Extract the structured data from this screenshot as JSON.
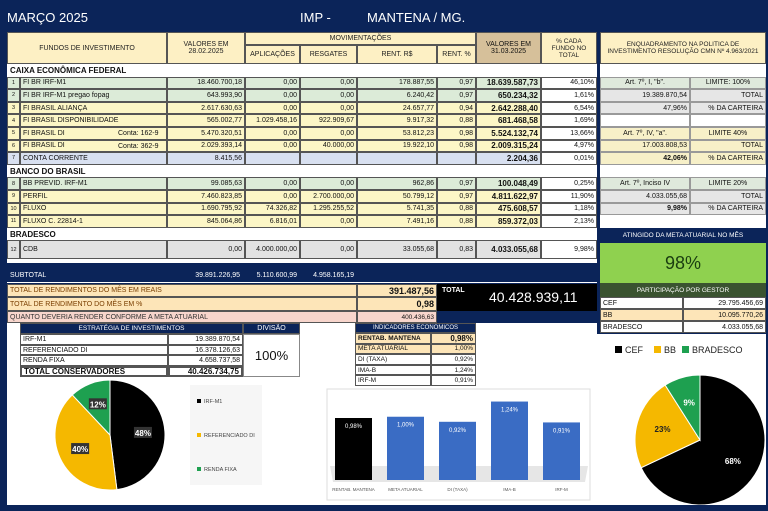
{
  "header": {
    "month": "MARÇO 2025",
    "org": "IMP -",
    "city": "MANTENA / MG."
  },
  "columns": {
    "funds": "FUNDOS DE INVESTIMENTO",
    "v0": "VALORES EM 28.02.2025",
    "mov": "MOVIMENTAÇÕES",
    "aplic": "APLICAÇÕES",
    "resg": "RESGATES",
    "rent_rs": "RENT. R$",
    "rent_pct": "RENT. %",
    "v1": "VALORES EM 31.03.2025",
    "pct": "% CADA FUNDO NO TOTAL",
    "enq": "ENQUADRAMENTO NA POLITICA DE INVESTIMENTO RESOLUÇÃO CMN Nº 4.963/2021"
  },
  "sections": [
    {
      "name": "CAIXA ECONÔMICA FEDERAL",
      "rows": [
        {
          "n": "1",
          "name": "FI BR IRF-M1",
          "conta": "",
          "v0": "18.460.700,18",
          "aplic": "0,00",
          "resg": "0,00",
          "rent_rs": "178.887,55",
          "rent_pct": "0,97",
          "v1": "18.639.587,73",
          "pct": "46,10%",
          "color": "g"
        },
        {
          "n": "2",
          "name": "FI BR IRF-M1 pregao fopag",
          "conta": "",
          "v0": "643.993,90",
          "aplic": "0,00",
          "resg": "0,00",
          "rent_rs": "6.240,42",
          "rent_pct": "0,97",
          "v1": "650.234,32",
          "pct": "1,61%",
          "color": "g"
        },
        {
          "n": "3",
          "name": "FI BRASIL ALIANÇA",
          "conta": "",
          "v0": "2.617.630,63",
          "aplic": "0,00",
          "resg": "0,00",
          "rent_rs": "24.657,77",
          "rent_pct": "0,94",
          "v1": "2.642.288,40",
          "pct": "6,54%",
          "color": "y"
        },
        {
          "n": "4",
          "name": "FI BRASIL DISPONIBILIDADE",
          "conta": "",
          "v0": "565.002,77",
          "aplic": "1.029.458,16",
          "resg": "922.909,67",
          "rent_rs": "9.917,32",
          "rent_pct": "0,88",
          "v1": "681.468,58",
          "pct": "1,69%",
          "color": "y"
        },
        {
          "n": "5",
          "name": "FI BRASIL DI",
          "conta": "Conta: 162-9",
          "v0": "5.470.320,51",
          "aplic": "0,00",
          "resg": "0,00",
          "rent_rs": "53.812,23",
          "rent_pct": "0,98",
          "v1": "5.524.132,74",
          "pct": "13,66%",
          "color": "y"
        },
        {
          "n": "6",
          "name": "FI BRASIL DI",
          "conta": "Conta: 362-9",
          "v0": "2.029.393,14",
          "aplic": "0,00",
          "resg": "40.000,00",
          "rent_rs": "19.922,10",
          "rent_pct": "0,98",
          "v1": "2.009.315,24",
          "pct": "4,97%",
          "color": "y"
        },
        {
          "n": "7",
          "name": "CONTA CORRENTE",
          "conta": "",
          "v0": "8.415,56",
          "aplic": "",
          "resg": "",
          "rent_rs": "",
          "rent_pct": "",
          "v1": "2.204,36",
          "pct": "0,01%",
          "color": "bl"
        }
      ]
    },
    {
      "name": "BANCO DO BRASIL",
      "rows": [
        {
          "n": "8",
          "name": "BB PREVID. IRF-M1",
          "conta": "",
          "v0": "99.085,63",
          "aplic": "0,00",
          "resg": "0,00",
          "rent_rs": "962,86",
          "rent_pct": "0,97",
          "v1": "100.048,49",
          "pct": "0,25%",
          "color": "g"
        },
        {
          "n": "9",
          "name": "PERFIL",
          "conta": "",
          "v0": "7.460.823,85",
          "aplic": "0,00",
          "resg": "2.700.000,00",
          "rent_rs": "50.799,12",
          "rent_pct": "0,97",
          "v1": "4.811.622,97",
          "pct": "11,90%",
          "color": "y"
        },
        {
          "n": "10",
          "name": "FLUXO",
          "conta": "",
          "v0": "1.690.795,92",
          "aplic": "74.326,82",
          "resg": "1.295.255,52",
          "rent_rs": "5.741,35",
          "rent_pct": "0,88",
          "v1": "475.608,57",
          "pct": "1,18%",
          "color": "y"
        },
        {
          "n": "11",
          "name": "FLUXO  C. 22814-1",
          "conta": "",
          "v0": "845.064,86",
          "aplic": "6.816,01",
          "resg": "0,00",
          "rent_rs": "7.491,16",
          "rent_pct": "0,88",
          "v1": "859.372,03",
          "pct": "2,13%",
          "color": "y"
        }
      ]
    },
    {
      "name": "BRADESCO",
      "rows": [
        {
          "n": "12",
          "name": "CDB",
          "conta": "",
          "v0": "0,00",
          "aplic": "4.000.000,00",
          "resg": "0,00",
          "rent_rs": "33.055,68",
          "rent_pct": "0,83",
          "v1": "4.033.055,68",
          "pct": "9,98%",
          "color": "gr"
        }
      ]
    }
  ],
  "enquadramento": [
    [
      "Art. 7º, I, \"b\".",
      "LIMITE: 100%"
    ],
    [
      "19.389.870,54",
      "TOTAL"
    ],
    [
      "47,96%",
      "% DA CARTEIRA"
    ],
    [
      "",
      ""
    ],
    [
      "Art. 7º, IV, \"a\".",
      "LIMITE 40%"
    ],
    [
      "17.003.808,53",
      "TOTAL"
    ],
    [
      "42,06%",
      "% DA CARTEIRA"
    ],
    [
      "Art. 7º, Inciso IV",
      "LIMITE 20%"
    ],
    [
      "4.033.055,68",
      "TOTAL"
    ],
    [
      "9,98%",
      "% DA CARTEIRA"
    ]
  ],
  "subtotal": {
    "label": "SUBTOTAL",
    "v0": "39.891.226,95",
    "aplic": "5.110.600,99",
    "resg": "4.958.165,19"
  },
  "totals": {
    "reais_label": "TOTAL DE RENDIMENTOS DO MÊS EM REAIS",
    "reais": "391.487,56",
    "pct_label": "TOTAL DE RENDIMENTO DO MÊS EM %",
    "pct": "0,98",
    "meta_label": "QUANTO DEVERIA RENDER CONFORME A META ATUARIAL",
    "meta": "400.436,63",
    "total_label": "TOTAL",
    "total": "40.428.939,11"
  },
  "meta_atingida": {
    "label": "ATINGIDO DA META ATUARIAL NO MÊS",
    "value": "98%",
    "fraction": 0.98
  },
  "participacao": {
    "title": "PARTICIPAÇÃO POR GESTOR",
    "rows": [
      [
        "CEF",
        "29.795.456,69"
      ],
      [
        "BB",
        "10.095.770,26"
      ],
      [
        "BRADESCO",
        "4.033.055,68"
      ]
    ]
  },
  "estrategia": {
    "title": "ESTRATÉGIA DE INVESTIMENTOS",
    "divisao": "DIVISÃO",
    "divisao_value": "100%",
    "rows": [
      [
        "IRF-M1",
        "19.389.870,54"
      ],
      [
        "REFERENCIADO DI",
        "16.378.126,63"
      ],
      [
        "RENDA FIXA",
        "4.658.737,58"
      ]
    ],
    "total": [
      "TOTAL CONSERVADORES",
      "40.426.734,75"
    ]
  },
  "indicadores": {
    "title": "INDICADORES ECONOMICOS",
    "rows": [
      [
        "RENTAB.  MANTENA",
        "0,98%"
      ],
      [
        "META ATUARIAL",
        "1,00%"
      ],
      [
        "DI (TAXA)",
        "0,92%"
      ],
      [
        "IMA-B",
        "1,24%"
      ],
      [
        "IRF-M",
        "0,91%"
      ]
    ]
  },
  "chart_data": [
    {
      "type": "pie",
      "categories": [
        "IRF-M1",
        "REFERENCIADO DI",
        "RENDA FIXA"
      ],
      "values": [
        48,
        40,
        12
      ],
      "labels": [
        "48%",
        "40%",
        "12%"
      ],
      "colors": [
        "#000000",
        "#f5b800",
        "#1ea050"
      ],
      "legend": "right"
    },
    {
      "type": "bar",
      "categories": [
        "RENTAB.  MANTENA",
        "META ATUARIAL",
        "DI (TAXA)",
        "IMA-B",
        "IRF-M"
      ],
      "values": [
        0.98,
        1.0,
        0.92,
        1.24,
        0.91
      ],
      "labels": [
        "0,98%",
        "1,00%",
        "0,92%",
        "1,24%",
        "0,91%"
      ],
      "colors": [
        "#000000",
        "#3a6cc4",
        "#3a6cc4",
        "#3a6cc4",
        "#3a6cc4"
      ],
      "ylim": [
        0,
        1.3
      ]
    },
    {
      "type": "pie",
      "categories": [
        "CEF",
        "BB",
        "BRADESCO"
      ],
      "values": [
        68,
        23,
        9
      ],
      "labels": [
        "68%",
        "23%",
        "9%"
      ],
      "colors": [
        "#000000",
        "#f5b800",
        "#1ea050"
      ],
      "legend": "top"
    }
  ]
}
